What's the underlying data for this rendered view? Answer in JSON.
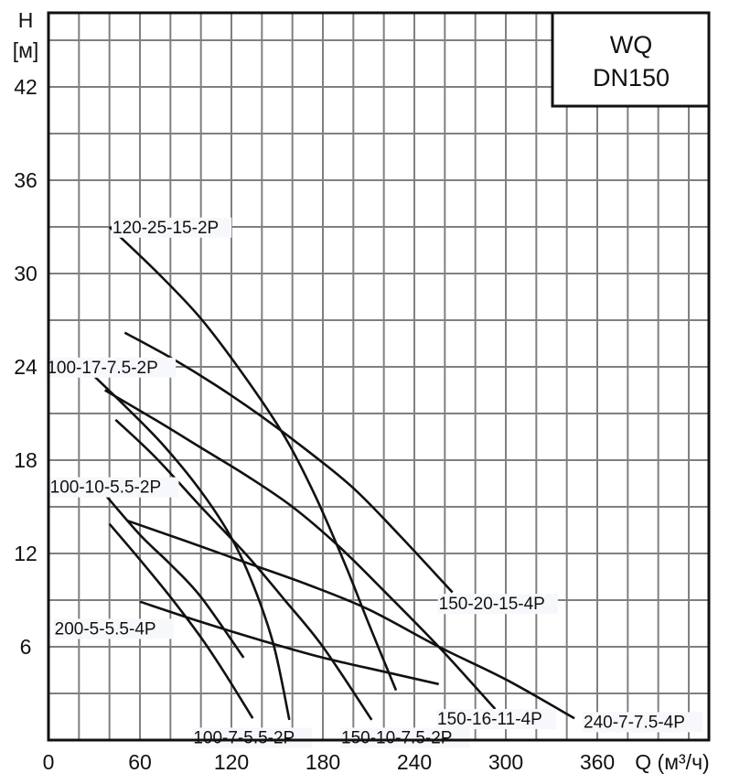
{
  "chart_data": {
    "type": "line",
    "title": "WQ DN150",
    "title_lines": [
      "WQ",
      "DN150"
    ],
    "xlabel": "Q (м³/ч)",
    "ylabel_lines": [
      "H",
      "[м]"
    ],
    "xlim": [
      0,
      433
    ],
    "ylim": [
      0,
      46.7
    ],
    "x_ticks": [
      0,
      60,
      120,
      180,
      240,
      300,
      360
    ],
    "y_ticks": [
      6,
      12,
      18,
      24,
      30,
      36,
      42
    ],
    "x_grid_step": 20,
    "y_grid_step": 3,
    "grid": true,
    "legend_position": "top-right box",
    "series": [
      {
        "name": "120-25-15-2P",
        "label_at": [
          42,
          32.6
        ],
        "points": [
          [
            40,
            33
          ],
          [
            70,
            30.2
          ],
          [
            100,
            27.1
          ],
          [
            130,
            23.2
          ],
          [
            155,
            19.5
          ],
          [
            175,
            15.7
          ],
          [
            195,
            11.2
          ],
          [
            210,
            7.5
          ],
          [
            228,
            3.2
          ]
        ]
      },
      {
        "name": "150-20-15-4P",
        "label_at": [
          256,
          8.4
        ],
        "points": [
          [
            50,
            26.2
          ],
          [
            80,
            24.6
          ],
          [
            110,
            22.8
          ],
          [
            140,
            20.8
          ],
          [
            170,
            18.6
          ],
          [
            200,
            16.2
          ],
          [
            230,
            13.2
          ],
          [
            265,
            9.5
          ]
        ]
      },
      {
        "name": "100-17-7.5-2P",
        "label_at": [
          -1,
          23.6
        ],
        "points": [
          [
            30,
            23.4
          ],
          [
            50,
            21.5
          ],
          [
            75,
            19
          ],
          [
            100,
            16
          ],
          [
            120,
            13
          ],
          [
            135,
            9.8
          ],
          [
            148,
            6
          ],
          [
            158,
            1.3
          ]
        ]
      },
      {
        "name": "150-16-11-4P",
        "label_at": [
          255,
          1.0
        ],
        "points": [
          [
            37,
            22.5
          ],
          [
            70,
            20.6
          ],
          [
            100,
            18.8
          ],
          [
            130,
            17
          ],
          [
            160,
            15
          ],
          [
            190,
            12.5
          ],
          [
            220,
            9.6
          ],
          [
            256,
            6
          ],
          [
            293,
            2
          ]
        ]
      },
      {
        "name": "150-10-7.5-2P",
        "label_at": [
          192,
          -0.2
        ],
        "points": [
          [
            44,
            20.6
          ],
          [
            70,
            18.2
          ],
          [
            100,
            15
          ],
          [
            130,
            11.9
          ],
          [
            155,
            9
          ],
          [
            180,
            6
          ],
          [
            212,
            1.3
          ]
        ]
      },
      {
        "name": "100-10-5.5-2P",
        "label_at": [
          1,
          15.9
        ],
        "points": [
          [
            37,
            15.8
          ],
          [
            60,
            13.2
          ],
          [
            80,
            11.3
          ],
          [
            100,
            9.2
          ],
          [
            128,
            5.3
          ]
        ]
      },
      {
        "name": "240-7-7.5-4P",
        "label_at": [
          351,
          0.8
        ],
        "points": [
          [
            52,
            14.1
          ],
          [
            90,
            12.8
          ],
          [
            130,
            11.4
          ],
          [
            170,
            10
          ],
          [
            210,
            8.4
          ],
          [
            256,
            6
          ],
          [
            300,
            3.9
          ],
          [
            345,
            1.4
          ]
        ]
      },
      {
        "name": "100-7-5.5-2P",
        "label_at": [
          95,
          -0.2
        ],
        "points": [
          [
            40,
            13.9
          ],
          [
            60,
            11.6
          ],
          [
            80,
            9.2
          ],
          [
            100,
            6.6
          ],
          [
            115,
            4.4
          ],
          [
            134,
            1.4
          ]
        ]
      },
      {
        "name": "200-5-5.5-4P",
        "label_at": [
          4,
          6.8
        ],
        "points": [
          [
            60,
            8.9
          ],
          [
            100,
            7.6
          ],
          [
            140,
            6.4
          ],
          [
            180,
            5.3
          ],
          [
            220,
            4.4
          ],
          [
            256,
            3.6
          ]
        ]
      }
    ]
  },
  "colors": {
    "curve": "#111111",
    "grid": "#808080",
    "background": "#ffffff"
  }
}
